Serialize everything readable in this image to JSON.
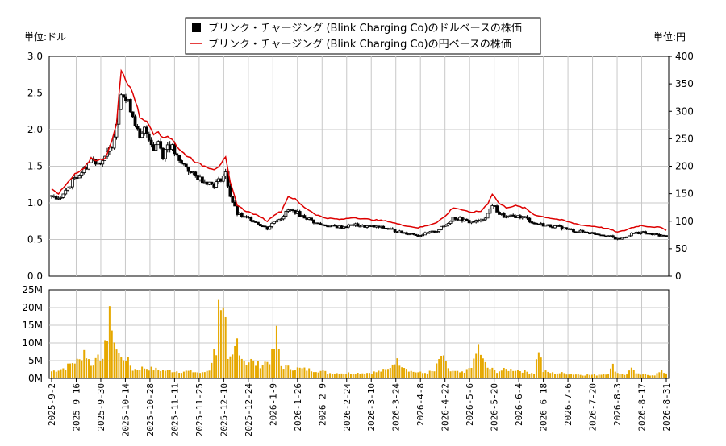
{
  "header": {
    "left_unit": "単位:ドル",
    "right_unit": "単位:円"
  },
  "chart_data": {
    "type": "candlestick+line+bar",
    "legend": [
      {
        "label": "ブリンク・チャージング (Blink Charging Co)のドルベースの株価",
        "color": "#000000",
        "marker": "square"
      },
      {
        "label": "ブリンク・チャージング (Blink Charging Co)の円ベースの株価",
        "color": "#dd0000",
        "marker": "line"
      }
    ],
    "price_axis_left": {
      "min": 0,
      "max": 3.0,
      "ticks": [
        "0.0",
        "0.5",
        "1.0",
        "1.5",
        "2.0",
        "2.5",
        "3.0"
      ]
    },
    "price_axis_right": {
      "min": 0,
      "max": 400,
      "ticks": [
        "0",
        "50",
        "100",
        "150",
        "200",
        "250",
        "300",
        "350",
        "400"
      ]
    },
    "volume_axis": {
      "min": 0,
      "max": 25,
      "unit": "M",
      "ticks": [
        "0M",
        "5M",
        "10M",
        "15M",
        "20M",
        "25M"
      ]
    },
    "x_ticks": [
      "2025-9-2",
      "2025-9-16",
      "2025-9-30",
      "2025-10-14",
      "2025-10-28",
      "2025-11-11",
      "2025-11-25",
      "2025-12-10",
      "2025-12-24",
      "2026-1-9",
      "2026-1-26",
      "2026-2-9",
      "2026-2-24",
      "2026-3-10",
      "2026-3-24",
      "2026-4-8",
      "2026-4-22",
      "2026-5-6",
      "2026-5-20",
      "2026-6-4",
      "2026-6-18",
      "2026-7-6",
      "2026-7-20",
      "2026-8-3",
      "2026-8-17",
      "2026-8-31"
    ],
    "usd_anchors": [
      [
        0,
        1.1
      ],
      [
        3,
        1.05
      ],
      [
        6,
        1.15
      ],
      [
        10,
        1.35
      ],
      [
        14,
        1.45
      ],
      [
        17,
        1.6
      ],
      [
        20,
        1.55
      ],
      [
        23,
        1.6
      ],
      [
        26,
        1.8
      ],
      [
        28,
        2.1
      ],
      [
        30,
        2.55
      ],
      [
        32,
        2.4
      ],
      [
        34,
        2.3
      ],
      [
        36,
        2.1
      ],
      [
        38,
        1.85
      ],
      [
        40,
        2.0
      ],
      [
        42,
        1.9
      ],
      [
        44,
        1.75
      ],
      [
        46,
        1.85
      ],
      [
        48,
        1.65
      ],
      [
        50,
        1.8
      ],
      [
        52,
        1.75
      ],
      [
        55,
        1.55
      ],
      [
        58,
        1.5
      ],
      [
        60,
        1.4
      ],
      [
        63,
        1.35
      ],
      [
        66,
        1.3
      ],
      [
        70,
        1.25
      ],
      [
        72,
        1.3
      ],
      [
        75,
        1.4
      ],
      [
        77,
        1.1
      ],
      [
        80,
        0.85
      ],
      [
        83,
        0.8
      ],
      [
        86,
        0.78
      ],
      [
        90,
        0.7
      ],
      [
        93,
        0.65
      ],
      [
        96,
        0.75
      ],
      [
        99,
        0.8
      ],
      [
        102,
        0.9
      ],
      [
        105,
        0.88
      ],
      [
        108,
        0.82
      ],
      [
        111,
        0.78
      ],
      [
        114,
        0.72
      ],
      [
        117,
        0.7
      ],
      [
        120,
        0.68
      ],
      [
        125,
        0.67
      ],
      [
        130,
        0.7
      ],
      [
        135,
        0.68
      ],
      [
        140,
        0.67
      ],
      [
        145,
        0.65
      ],
      [
        150,
        0.6
      ],
      [
        155,
        0.58
      ],
      [
        158,
        0.56
      ],
      [
        162,
        0.58
      ],
      [
        166,
        0.62
      ],
      [
        170,
        0.7
      ],
      [
        173,
        0.8
      ],
      [
        176,
        0.78
      ],
      [
        180,
        0.74
      ],
      [
        185,
        0.75
      ],
      [
        188,
        0.85
      ],
      [
        190,
        0.98
      ],
      [
        193,
        0.85
      ],
      [
        196,
        0.8
      ],
      [
        200,
        0.82
      ],
      [
        204,
        0.8
      ],
      [
        208,
        0.72
      ],
      [
        212,
        0.7
      ],
      [
        216,
        0.68
      ],
      [
        220,
        0.66
      ],
      [
        225,
        0.62
      ],
      [
        230,
        0.6
      ],
      [
        235,
        0.58
      ],
      [
        240,
        0.55
      ],
      [
        244,
        0.5
      ],
      [
        247,
        0.53
      ],
      [
        250,
        0.58
      ],
      [
        254,
        0.6
      ],
      [
        258,
        0.57
      ],
      [
        262,
        0.56
      ],
      [
        265,
        0.54
      ]
    ],
    "jpy_anchors": [
      [
        0,
        160
      ],
      [
        3,
        150
      ],
      [
        6,
        165
      ],
      [
        10,
        185
      ],
      [
        14,
        195
      ],
      [
        17,
        215
      ],
      [
        20,
        210
      ],
      [
        23,
        215
      ],
      [
        26,
        245
      ],
      [
        28,
        280
      ],
      [
        30,
        375
      ],
      [
        32,
        355
      ],
      [
        34,
        345
      ],
      [
        36,
        320
      ],
      [
        38,
        290
      ],
      [
        40,
        285
      ],
      [
        42,
        275
      ],
      [
        44,
        260
      ],
      [
        46,
        265
      ],
      [
        48,
        250
      ],
      [
        50,
        255
      ],
      [
        52,
        250
      ],
      [
        55,
        230
      ],
      [
        58,
        220
      ],
      [
        60,
        215
      ],
      [
        63,
        205
      ],
      [
        66,
        200
      ],
      [
        70,
        195
      ],
      [
        72,
        200
      ],
      [
        75,
        215
      ],
      [
        77,
        170
      ],
      [
        80,
        130
      ],
      [
        83,
        120
      ],
      [
        86,
        115
      ],
      [
        90,
        108
      ],
      [
        93,
        100
      ],
      [
        96,
        112
      ],
      [
        99,
        118
      ],
      [
        102,
        145
      ],
      [
        105,
        140
      ],
      [
        108,
        128
      ],
      [
        111,
        120
      ],
      [
        114,
        112
      ],
      [
        117,
        107
      ],
      [
        120,
        105
      ],
      [
        125,
        103
      ],
      [
        130,
        107
      ],
      [
        135,
        104
      ],
      [
        140,
        102
      ],
      [
        145,
        100
      ],
      [
        150,
        94
      ],
      [
        155,
        90
      ],
      [
        158,
        88
      ],
      [
        162,
        92
      ],
      [
        166,
        98
      ],
      [
        170,
        110
      ],
      [
        173,
        125
      ],
      [
        176,
        122
      ],
      [
        180,
        116
      ],
      [
        185,
        118
      ],
      [
        188,
        132
      ],
      [
        190,
        150
      ],
      [
        193,
        132
      ],
      [
        196,
        125
      ],
      [
        200,
        128
      ],
      [
        204,
        124
      ],
      [
        208,
        112
      ],
      [
        212,
        108
      ],
      [
        216,
        105
      ],
      [
        220,
        102
      ],
      [
        225,
        96
      ],
      [
        230,
        92
      ],
      [
        235,
        90
      ],
      [
        240,
        86
      ],
      [
        244,
        80
      ],
      [
        247,
        83
      ],
      [
        250,
        88
      ],
      [
        254,
        92
      ],
      [
        258,
        90
      ],
      [
        262,
        89
      ],
      [
        265,
        84
      ]
    ],
    "volume_anchors": [
      [
        0,
        2
      ],
      [
        3,
        2.5
      ],
      [
        6,
        3
      ],
      [
        9,
        4.5
      ],
      [
        12,
        5
      ],
      [
        14,
        8
      ],
      [
        16,
        5
      ],
      [
        18,
        3.5
      ],
      [
        20,
        8
      ],
      [
        22,
        4.5
      ],
      [
        24,
        13
      ],
      [
        25,
        21
      ],
      [
        26,
        11
      ],
      [
        27,
        12
      ],
      [
        28,
        8.5
      ],
      [
        30,
        5.5
      ],
      [
        32,
        6
      ],
      [
        35,
        2.5
      ],
      [
        40,
        3
      ],
      [
        45,
        2.5
      ],
      [
        50,
        2.2
      ],
      [
        55,
        2
      ],
      [
        60,
        2
      ],
      [
        65,
        1.5
      ],
      [
        68,
        2.5
      ],
      [
        70,
        7.5
      ],
      [
        71,
        8
      ],
      [
        72,
        25
      ],
      [
        73,
        17
      ],
      [
        74,
        17
      ],
      [
        75,
        14
      ],
      [
        76,
        4.5
      ],
      [
        78,
        6
      ],
      [
        80,
        11
      ],
      [
        82,
        6
      ],
      [
        84,
        4.5
      ],
      [
        86,
        5
      ],
      [
        88,
        4
      ],
      [
        90,
        3.8
      ],
      [
        92,
        4.5
      ],
      [
        94,
        5
      ],
      [
        96,
        8.5
      ],
      [
        97,
        12.5
      ],
      [
        99,
        3.5
      ],
      [
        102,
        3
      ],
      [
        106,
        2.8
      ],
      [
        110,
        2.5
      ],
      [
        115,
        2.2
      ],
      [
        120,
        1.5
      ],
      [
        125,
        1.5
      ],
      [
        130,
        1.5
      ],
      [
        135,
        1.5
      ],
      [
        140,
        1.8
      ],
      [
        145,
        2.5
      ],
      [
        148,
        5
      ],
      [
        150,
        4.5
      ],
      [
        152,
        3.5
      ],
      [
        155,
        2
      ],
      [
        160,
        1.5
      ],
      [
        165,
        2
      ],
      [
        168,
        6.5
      ],
      [
        170,
        4
      ],
      [
        172,
        2
      ],
      [
        178,
        1.5
      ],
      [
        182,
        4.5
      ],
      [
        184,
        9
      ],
      [
        186,
        5
      ],
      [
        188,
        3
      ],
      [
        192,
        2
      ],
      [
        196,
        2.5
      ],
      [
        200,
        2.5
      ],
      [
        204,
        2
      ],
      [
        208,
        1.5
      ],
      [
        210,
        8.5
      ],
      [
        212,
        2
      ],
      [
        216,
        1.5
      ],
      [
        220,
        1.5
      ],
      [
        225,
        1.2
      ],
      [
        230,
        1
      ],
      [
        235,
        1
      ],
      [
        240,
        1.5
      ],
      [
        242,
        3.5
      ],
      [
        244,
        1.5
      ],
      [
        248,
        1
      ],
      [
        250,
        3.5
      ],
      [
        252,
        1.2
      ],
      [
        256,
        1
      ],
      [
        260,
        1
      ],
      [
        263,
        2
      ],
      [
        265,
        1.5
      ]
    ]
  }
}
